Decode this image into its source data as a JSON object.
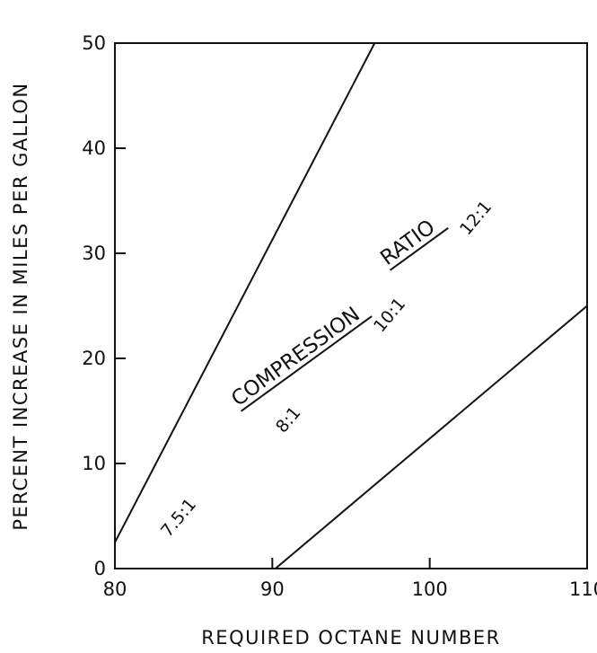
{
  "chart_data": {
    "type": "line",
    "title": "",
    "xlabel": "REQUIRED OCTANE NUMBER",
    "ylabel": "PERCENT INCREASE IN MILES PER GALLON",
    "xlim": [
      80,
      110
    ],
    "ylim": [
      0,
      50
    ],
    "x_ticks": [
      "80",
      "90",
      "100",
      "110"
    ],
    "y_ticks": [
      "0",
      "10",
      "20",
      "30",
      "40",
      "50"
    ],
    "grid": false,
    "series": [
      {
        "x": [
          80,
          96.5
        ],
        "y": [
          2.5,
          50
        ]
      },
      {
        "x": [
          90.2,
          110
        ],
        "y": [
          0,
          25
        ]
      }
    ],
    "annotations": {
      "compression": "COMPRESSION",
      "ratio": "RATIO",
      "r75": "7.5:1",
      "r8": "8:1",
      "r10": "10:1",
      "r12": "12:1"
    }
  }
}
